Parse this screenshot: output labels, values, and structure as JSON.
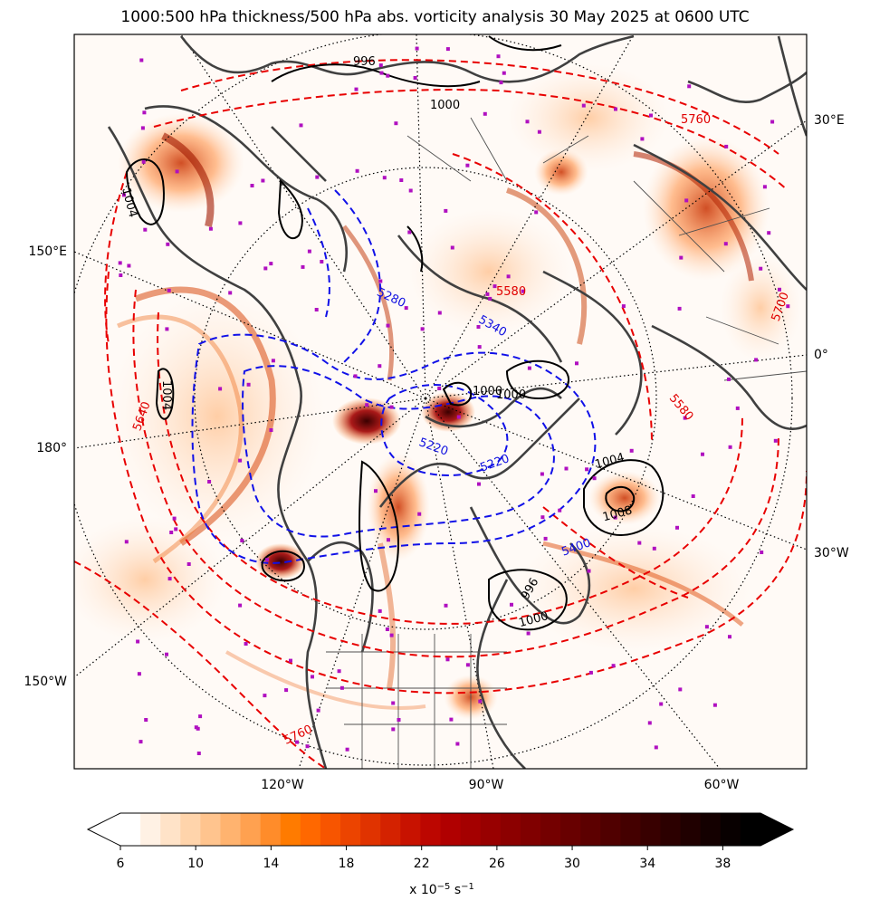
{
  "title": "1000:500 hPa thickness/500 hPa abs. vorticity analysis 30 May 2025 at 0600 UTC",
  "map": {
    "lon_labels_right": [
      "30°E",
      "0°",
      "30°W"
    ],
    "lon_labels_left": [
      "150°E",
      "180°",
      "150°W"
    ],
    "lon_labels_bottom": [
      "120°W",
      "90°W",
      "60°W"
    ],
    "thickness_labels_red": [
      "5760",
      "5640",
      "5760",
      "5700",
      "5580",
      "5580"
    ],
    "thickness_labels_blue": [
      "5280",
      "5340",
      "5220",
      "5220",
      "5400"
    ],
    "pressure_labels": [
      "1000",
      "996",
      "1004",
      "1004",
      "1000",
      "1004",
      "1000",
      "1008",
      "996",
      "1000"
    ]
  },
  "colorbar": {
    "ticks": [
      "6",
      "10",
      "14",
      "18",
      "22",
      "26",
      "30",
      "34",
      "38"
    ],
    "tick_values": [
      6,
      10,
      14,
      18,
      22,
      26,
      30,
      34,
      38
    ],
    "min": 6,
    "max": 40,
    "label": "x 10",
    "label_exp": "−5",
    "label_unit": " s",
    "label_unit_exp": "−1",
    "colors": [
      "#ffffff",
      "#fff1e4",
      "#ffe3c8",
      "#ffd4ab",
      "#ffc48e",
      "#ffb36f",
      "#ffa150",
      "#ff8c2a",
      "#ff7b00",
      "#ff6800",
      "#f75500",
      "#ec4400",
      "#e03300",
      "#d42200",
      "#c81200",
      "#bc0600",
      "#b00000",
      "#a40000",
      "#980000",
      "#8c0000",
      "#800000",
      "#740000",
      "#680000",
      "#5c0000",
      "#500000",
      "#440000",
      "#380000",
      "#2c0000",
      "#200000",
      "#140000",
      "#080000",
      "#000000"
    ]
  }
}
